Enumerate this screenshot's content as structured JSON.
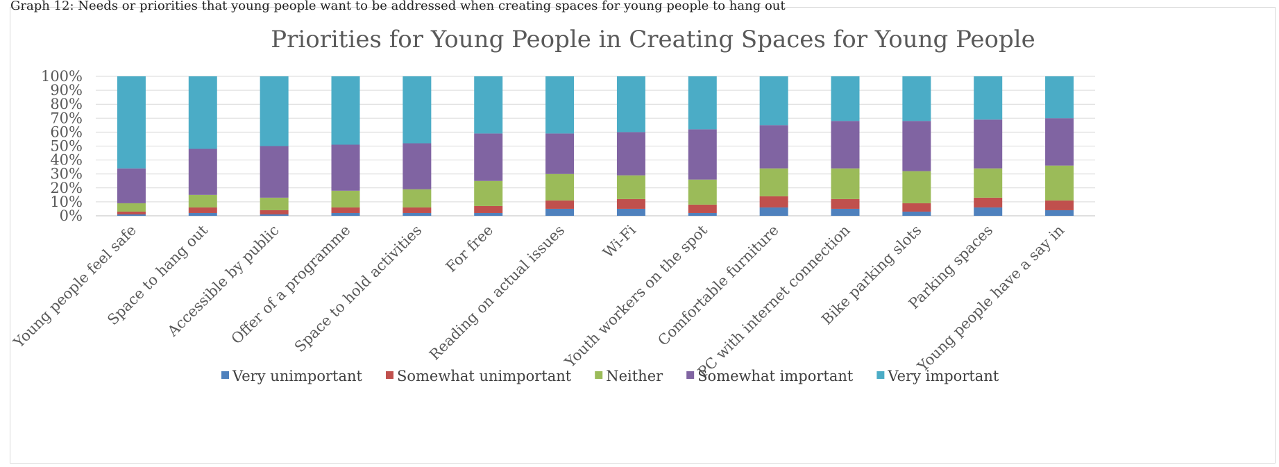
{
  "caption": "Graph 12: Needs or priorities that young people want to be addressed when creating spaces for young people to hang out",
  "chart_data": {
    "type": "bar",
    "stacked": true,
    "percent": true,
    "title": "Priorities for Young People in Creating Spaces for Young People",
    "xlabel": "",
    "ylabel": "",
    "ylim": [
      0,
      100
    ],
    "yticks": [
      "0%",
      "10%",
      "20%",
      "30%",
      "40%",
      "50%",
      "60%",
      "70%",
      "80%",
      "90%",
      "100%"
    ],
    "grid": true,
    "legend_position": "bottom",
    "categories": [
      "Young people feel safe",
      "Space to hang out",
      "Accessible by public",
      "Offer of a programme",
      "Space to hold activities",
      "For free",
      "Reading on actual issues",
      "Wi-Fi",
      "Youth workers on the spot",
      "Comfortable furniture",
      "PC with internet connection",
      "Bike parking slots",
      "Parking spaces",
      "Young people have a say in"
    ],
    "series": [
      {
        "name": "Very unimportant",
        "color": "#4F81BD",
        "values": [
          1,
          2,
          1,
          2,
          2,
          2,
          5,
          5,
          2,
          6,
          5,
          3,
          6,
          4
        ]
      },
      {
        "name": "Somewhat unimportant",
        "color": "#C0504D",
        "values": [
          2,
          4,
          3,
          4,
          4,
          5,
          6,
          7,
          6,
          8,
          7,
          6,
          7,
          7
        ]
      },
      {
        "name": "Neither",
        "color": "#9BBB59",
        "values": [
          6,
          9,
          9,
          12,
          13,
          18,
          19,
          17,
          18,
          20,
          22,
          23,
          21,
          25
        ]
      },
      {
        "name": "Somewhat important",
        "color": "#8064A2",
        "values": [
          25,
          33,
          37,
          33,
          33,
          34,
          29,
          31,
          36,
          31,
          34,
          36,
          35,
          34
        ]
      },
      {
        "name": "Very important",
        "color": "#4BACC6",
        "values": [
          66,
          52,
          50,
          49,
          48,
          41,
          41,
          40,
          38,
          35,
          32,
          32,
          31,
          30
        ]
      }
    ]
  }
}
